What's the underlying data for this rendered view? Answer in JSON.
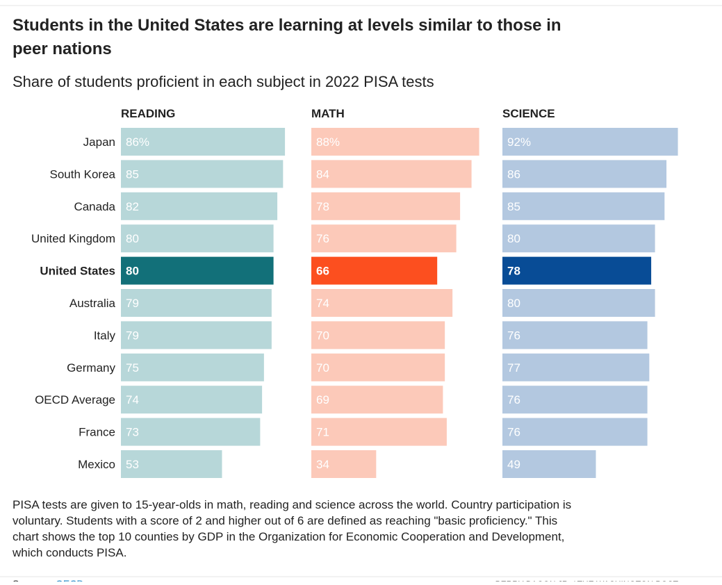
{
  "chart_data": {
    "type": "bar",
    "title": [
      "Students in the United States are learning at levels similar to those in",
      "peer nations"
    ],
    "subtitle": "Share of students proficient in each subject in 2022 PISA tests",
    "categories": [
      "Japan",
      "South Korea",
      "Canada",
      "United Kingdom",
      "United States",
      "Australia",
      "Italy",
      "Germany",
      "OECD Average",
      "France",
      "Mexico"
    ],
    "highlight_index": 4,
    "xlim": [
      0,
      100
    ],
    "series": [
      {
        "name": "READING",
        "color": "#b7d7d9",
        "highlight_color": "#127079",
        "values": [
          86,
          85,
          82,
          80,
          80,
          79,
          79,
          75,
          74,
          73,
          53
        ],
        "value_labels": [
          "86%",
          "85",
          "82",
          "80",
          "80",
          "79",
          "79",
          "75",
          "74",
          "73",
          "53"
        ]
      },
      {
        "name": "MATH",
        "color": "#fcc9b9",
        "highlight_color": "#fc4f1f",
        "values": [
          88,
          84,
          78,
          76,
          66,
          74,
          70,
          70,
          69,
          71,
          34
        ],
        "value_labels": [
          "88%",
          "84",
          "78",
          "76",
          "66",
          "74",
          "70",
          "70",
          "69",
          "71",
          "34"
        ]
      },
      {
        "name": "SCIENCE",
        "color": "#b3c8e0",
        "highlight_color": "#084c96",
        "values": [
          92,
          86,
          85,
          80,
          78,
          80,
          76,
          77,
          76,
          76,
          49
        ],
        "value_labels": [
          "92%",
          "86",
          "85",
          "80",
          "78",
          "80",
          "76",
          "77",
          "76",
          "76",
          "49"
        ]
      }
    ],
    "note_lines": [
      "PISA tests are given to 15-year-olds in math, reading and science across the world. Country participation is",
      "voluntary. Students with a score of 2 and higher out of 6 are defined as reaching \"basic proficiency.\" This",
      "chart shows the top 10 counties by GDP in the Organization for Economic Cooperation and Development,",
      "which conducts PISA."
    ],
    "source_label": "Source:",
    "source": "OECD",
    "credit": "PERRY BACON JR. / THE WASHINGTON POST"
  }
}
